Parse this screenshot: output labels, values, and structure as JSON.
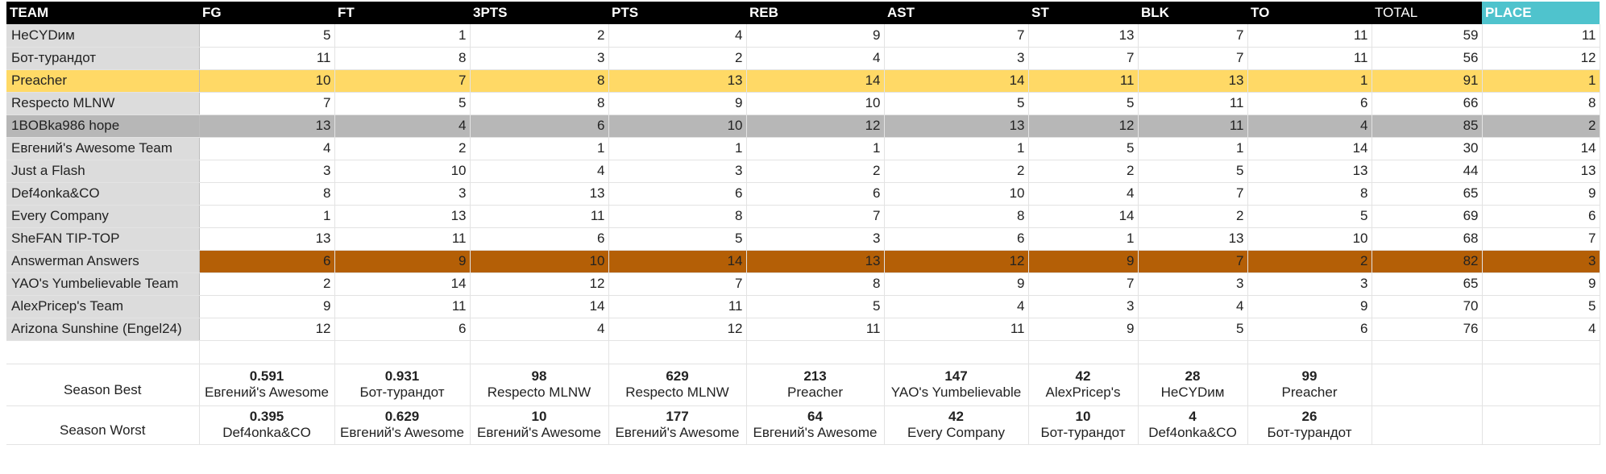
{
  "headers": [
    "TEAM",
    "FG",
    "FT",
    "3PTS",
    "PTS",
    "REB",
    "AST",
    "ST",
    "BLK",
    "TO",
    "TOTAL",
    "PLACE"
  ],
  "rows": [
    {
      "team": "НеCYDим",
      "vals": [
        "5",
        "1",
        "2",
        "4",
        "9",
        "7",
        "13",
        "7",
        "11",
        "59",
        "11"
      ],
      "hl": ""
    },
    {
      "team": "Бот-турандот",
      "vals": [
        "11",
        "8",
        "3",
        "2",
        "4",
        "3",
        "7",
        "7",
        "11",
        "56",
        "12"
      ],
      "hl": ""
    },
    {
      "team": "Preacher",
      "vals": [
        "10",
        "7",
        "8",
        "13",
        "14",
        "14",
        "11",
        "13",
        "1",
        "91",
        "1"
      ],
      "hl": "gold"
    },
    {
      "team": "Respecto MLNW",
      "vals": [
        "7",
        "5",
        "8",
        "9",
        "10",
        "5",
        "5",
        "11",
        "6",
        "66",
        "8"
      ],
      "hl": ""
    },
    {
      "team": "1BOBka986 hope",
      "vals": [
        "13",
        "4",
        "6",
        "10",
        "12",
        "13",
        "12",
        "11",
        "4",
        "85",
        "2"
      ],
      "hl": "silver"
    },
    {
      "team": "Евгений's Awesome Team",
      "vals": [
        "4",
        "2",
        "1",
        "1",
        "1",
        "1",
        "5",
        "1",
        "14",
        "30",
        "14"
      ],
      "hl": ""
    },
    {
      "team": "Just a Flash",
      "vals": [
        "3",
        "10",
        "4",
        "3",
        "2",
        "2",
        "2",
        "5",
        "13",
        "44",
        "13"
      ],
      "hl": ""
    },
    {
      "team": "Def4onka&CO",
      "vals": [
        "8",
        "3",
        "13",
        "6",
        "6",
        "10",
        "4",
        "7",
        "8",
        "65",
        "9"
      ],
      "hl": ""
    },
    {
      "team": "Every Company",
      "vals": [
        "1",
        "13",
        "11",
        "8",
        "7",
        "8",
        "14",
        "2",
        "5",
        "69",
        "6"
      ],
      "hl": ""
    },
    {
      "team": "SheFAN TIP-TOP",
      "vals": [
        "13",
        "11",
        "6",
        "5",
        "3",
        "6",
        "1",
        "13",
        "10",
        "68",
        "7"
      ],
      "hl": ""
    },
    {
      "team": "Answerman Answers",
      "vals": [
        "6",
        "9",
        "10",
        "14",
        "13",
        "12",
        "9",
        "7",
        "2",
        "82",
        "3"
      ],
      "hl": "bronze"
    },
    {
      "team": "YAO's Yumbelievable Team",
      "vals": [
        "2",
        "14",
        "12",
        "7",
        "8",
        "9",
        "7",
        "3",
        "3",
        "65",
        "9"
      ],
      "hl": ""
    },
    {
      "team": "AlexPricep's Team",
      "vals": [
        "9",
        "11",
        "14",
        "11",
        "5",
        "4",
        "3",
        "4",
        "9",
        "70",
        "5"
      ],
      "hl": ""
    },
    {
      "team": "Arizona Sunshine (Engel24)",
      "vals": [
        "12",
        "6",
        "4",
        "12",
        "11",
        "11",
        "9",
        "5",
        "6",
        "76",
        "4"
      ],
      "hl": ""
    }
  ],
  "season_best": {
    "label": "Season Best",
    "items": [
      {
        "value": "0.591",
        "team": "Евгений's Awesome"
      },
      {
        "value": "0.931",
        "team": "Бот-турандот"
      },
      {
        "value": "98",
        "team": "Respecto MLNW"
      },
      {
        "value": "629",
        "team": "Respecto MLNW"
      },
      {
        "value": "213",
        "team": "Preacher"
      },
      {
        "value": "147",
        "team": "YAO's Yumbelievable"
      },
      {
        "value": "42",
        "team": "AlexPricep's"
      },
      {
        "value": "28",
        "team": "НеCYDим"
      },
      {
        "value": "99",
        "team": "Preacher"
      }
    ]
  },
  "season_worst": {
    "label": "Season Worst",
    "items": [
      {
        "value": "0.395",
        "team": "Def4onka&CO"
      },
      {
        "value": "0.629",
        "team": "Евгений's Awesome"
      },
      {
        "value": "10",
        "team": "Евгений's Awesome"
      },
      {
        "value": "177",
        "team": "Евгений's Awesome"
      },
      {
        "value": "64",
        "team": "Евгений's Awesome"
      },
      {
        "value": "42",
        "team": "Every Company"
      },
      {
        "value": "10",
        "team": "Бот-турандот"
      },
      {
        "value": "4",
        "team": "Def4onka&CO"
      },
      {
        "value": "26",
        "team": "Бот-турандот"
      }
    ]
  },
  "colors": {
    "header_bg": "#000000",
    "place_header_bg": "#4fc3cd",
    "first_place": "#ffd966",
    "second_place": "#b7b7b7",
    "third_place": "#b45f06",
    "team_column_bg": "#dcdcdc"
  }
}
